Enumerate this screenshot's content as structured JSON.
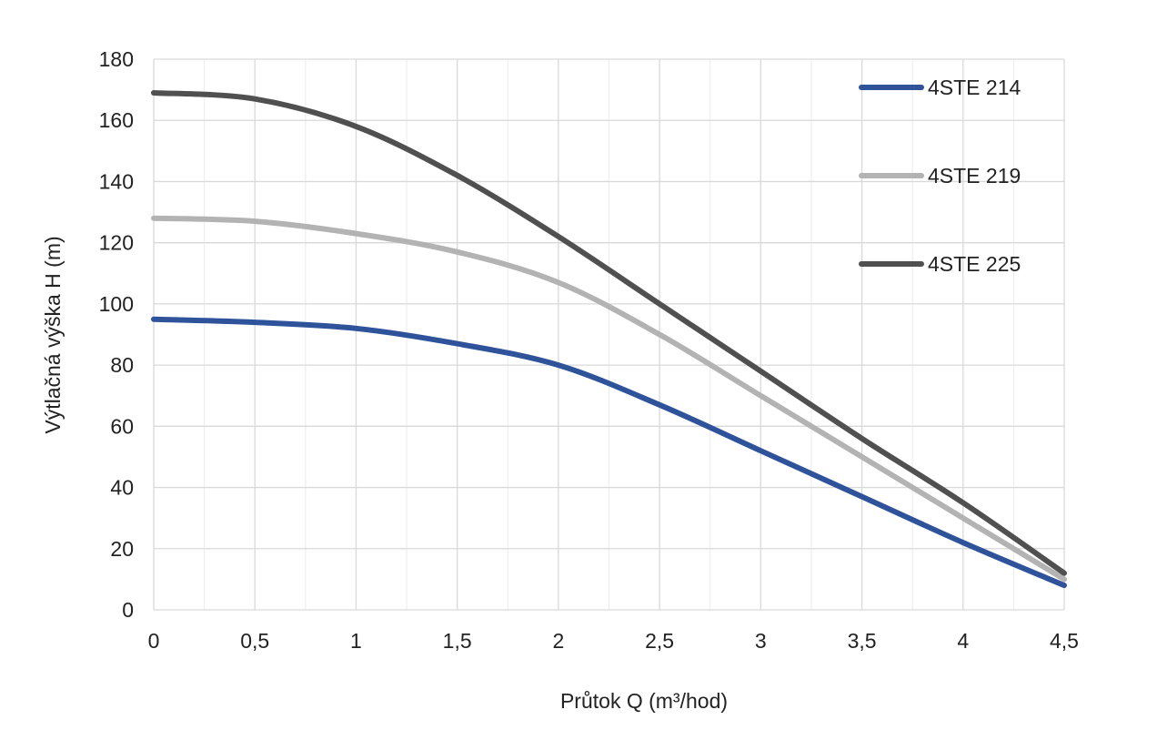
{
  "chart_data": {
    "type": "line",
    "title": "",
    "xlabel": "Průtok Q (m³/hod)",
    "ylabel": "Výtlačná výška H (m)",
    "xlim": [
      0,
      4.5
    ],
    "ylim": [
      0,
      180
    ],
    "x_ticks": [
      "0",
      "0,5",
      "1",
      "1,5",
      "2",
      "2,5",
      "3",
      "3,5",
      "4",
      "4,5"
    ],
    "y_ticks": [
      "0",
      "20",
      "40",
      "60",
      "80",
      "100",
      "120",
      "140",
      "160",
      "180"
    ],
    "grid": true,
    "legend_position": "top-right",
    "series": [
      {
        "name": "4STE 214",
        "color": "#2f539b",
        "x": [
          0,
          0.5,
          1,
          1.5,
          2,
          2.5,
          3,
          3.5,
          4,
          4.5
        ],
        "y": [
          95,
          94,
          92,
          87,
          80,
          67,
          52,
          37,
          22,
          8
        ]
      },
      {
        "name": "4STE 219",
        "color": "#b3b3b3",
        "x": [
          0,
          0.5,
          1,
          1.5,
          2,
          2.5,
          3,
          3.5,
          4,
          4.5
        ],
        "y": [
          128,
          127,
          123,
          117,
          107,
          90,
          70,
          50,
          30,
          10
        ]
      },
      {
        "name": "4STE 225",
        "color": "#505050",
        "x": [
          0,
          0.5,
          1,
          1.5,
          2,
          2.5,
          3,
          3.5,
          4,
          4.5
        ],
        "y": [
          169,
          167,
          158,
          142,
          122,
          100,
          78,
          56,
          35,
          12
        ]
      }
    ]
  }
}
